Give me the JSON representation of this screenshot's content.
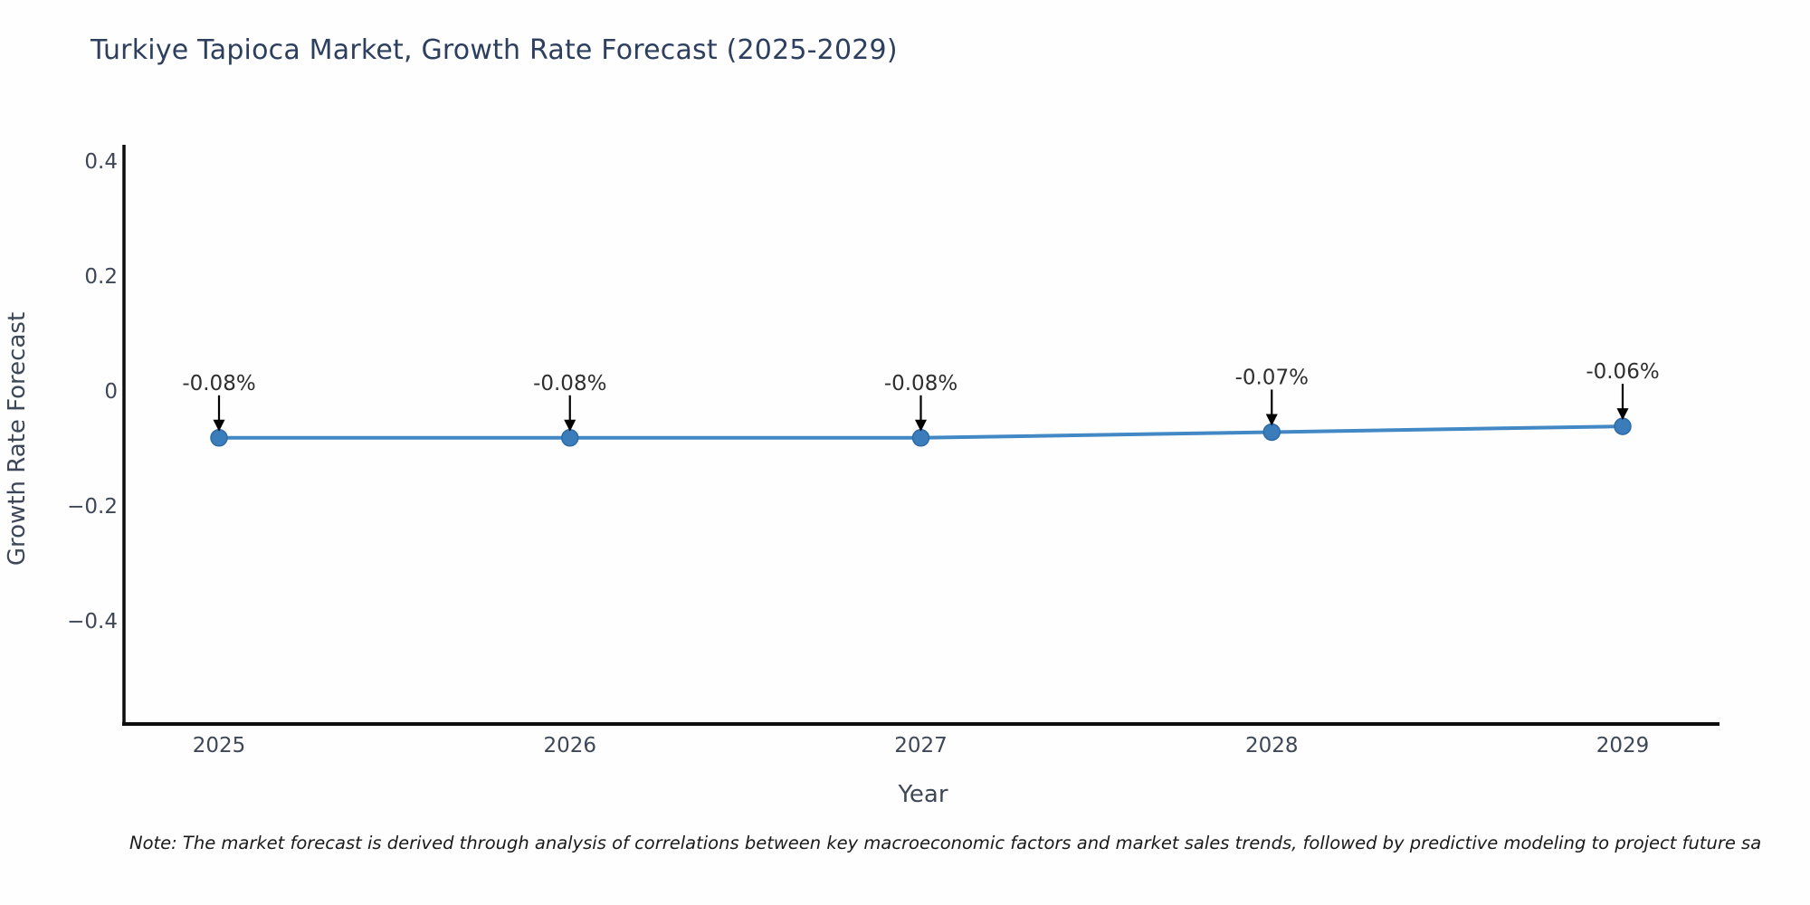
{
  "page": {
    "background": "#fefefe"
  },
  "header": {
    "title": "Turkiye Tapioca Market, Growth Rate Forecast (2025-2029)"
  },
  "footer": {
    "note": "Note: The market forecast is derived through analysis of correlations between key macroeconomic factors and market sales trends, followed by predictive modeling to project future sa"
  },
  "chart_data": {
    "type": "line",
    "title": "Turkiye Tapioca Market, Growth Rate Forecast (2025-2029)",
    "xlabel": "Year",
    "ylabel": "Growth Rate Forecast",
    "categories": [
      "2025",
      "2026",
      "2027",
      "2028",
      "2029"
    ],
    "x": [
      2025,
      2026,
      2027,
      2028,
      2029
    ],
    "series": [
      {
        "name": "Growth Rate Forecast",
        "values": [
          -0.08,
          -0.08,
          -0.08,
          -0.07,
          -0.06
        ]
      }
    ],
    "point_labels": [
      "-0.08%",
      "-0.08%",
      "-0.08%",
      "-0.07%",
      "-0.06%"
    ],
    "yticks": [
      0.4,
      0.2,
      0,
      -0.2,
      -0.4
    ],
    "ytick_labels": [
      "0.4",
      "0.2",
      "0",
      "−0.2",
      "−0.4"
    ],
    "ylim": [
      -0.58,
      0.43
    ],
    "grid": false,
    "legend": "none",
    "annotation_style": "value label with black down-arrow above each marker",
    "colors": {
      "line": "#4288c5",
      "marker_fill": "#3b7dbb",
      "marker_edge": "#2e6ba6",
      "axis": "#0d0d0d",
      "tick_text": "#3e4757",
      "axis_label_text": "#3e4757",
      "title_text": "#2d3f5e",
      "annotation_text": "#2e2e2e",
      "arrow": "#000000"
    }
  }
}
